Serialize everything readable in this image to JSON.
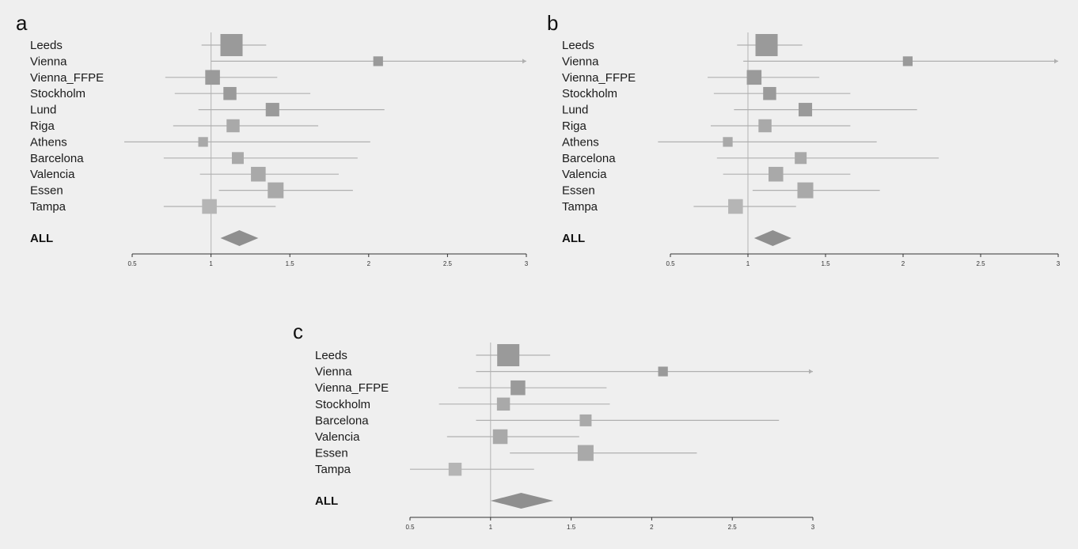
{
  "chart_data": [
    {
      "type": "forest",
      "panel": "a",
      "xlim": [
        0.5,
        3
      ],
      "xticks": [
        "0.5",
        "1",
        "1.5",
        "2",
        "2.5",
        "3"
      ],
      "reference_line": 1,
      "studies": [
        {
          "label": "Leeds",
          "estimate": 1.13,
          "ci": [
            0.94,
            1.35
          ],
          "weight": 1.0,
          "shade": "#9a9a9a"
        },
        {
          "label": "Vienna",
          "estimate": 2.06,
          "ci": [
            1.0,
            3.0
          ],
          "weight": 0.25,
          "shade": "#9a9a9a",
          "ci_truncated": true
        },
        {
          "label": "Vienna_FFPE",
          "estimate": 1.01,
          "ci": [
            0.71,
            1.42
          ],
          "weight": 0.55,
          "shade": "#9a9a9a"
        },
        {
          "label": "Stockholm",
          "estimate": 1.12,
          "ci": [
            0.77,
            1.63
          ],
          "weight": 0.45,
          "shade": "#9a9a9a"
        },
        {
          "label": "Lund",
          "estimate": 1.39,
          "ci": [
            0.92,
            2.1
          ],
          "weight": 0.48,
          "shade": "#9a9a9a"
        },
        {
          "label": "Riga",
          "estimate": 1.14,
          "ci": [
            0.76,
            1.68
          ],
          "weight": 0.45,
          "shade": "#a9a9a9"
        },
        {
          "label": "Athens",
          "estimate": 0.95,
          "ci": [
            0.45,
            2.01
          ],
          "weight": 0.25,
          "shade": "#a9a9a9"
        },
        {
          "label": "Barcelona",
          "estimate": 1.17,
          "ci": [
            0.7,
            1.93
          ],
          "weight": 0.38,
          "shade": "#a9a9a9"
        },
        {
          "label": "Valencia",
          "estimate": 1.3,
          "ci": [
            0.93,
            1.81
          ],
          "weight": 0.55,
          "shade": "#a9a9a9"
        },
        {
          "label": "Essen",
          "estimate": 1.41,
          "ci": [
            1.05,
            1.9
          ],
          "weight": 0.62,
          "shade": "#a9a9a9"
        },
        {
          "label": "Tampa",
          "estimate": 0.99,
          "ci": [
            0.7,
            1.41
          ],
          "weight": 0.55,
          "shade": "#b5b5b5"
        }
      ],
      "summary": {
        "label": "ALL",
        "estimate": 1.18,
        "ci": [
          1.06,
          1.3
        ]
      }
    },
    {
      "type": "forest",
      "panel": "b",
      "xlim": [
        0.5,
        3
      ],
      "xticks": [
        "0.5",
        "1",
        "1.5",
        "2",
        "2.5",
        "3"
      ],
      "reference_line": 1,
      "studies": [
        {
          "label": "Leeds",
          "estimate": 1.12,
          "ci": [
            0.93,
            1.35
          ],
          "weight": 1.0,
          "shade": "#9a9a9a"
        },
        {
          "label": "Vienna",
          "estimate": 2.03,
          "ci": [
            0.97,
            3.0
          ],
          "weight": 0.25,
          "shade": "#9a9a9a",
          "ci_truncated": true
        },
        {
          "label": "Vienna_FFPE",
          "estimate": 1.04,
          "ci": [
            0.74,
            1.46
          ],
          "weight": 0.55,
          "shade": "#9a9a9a"
        },
        {
          "label": "Stockholm",
          "estimate": 1.14,
          "ci": [
            0.78,
            1.66
          ],
          "weight": 0.45,
          "shade": "#9a9a9a"
        },
        {
          "label": "Lund",
          "estimate": 1.37,
          "ci": [
            0.91,
            2.09
          ],
          "weight": 0.48,
          "shade": "#9a9a9a"
        },
        {
          "label": "Riga",
          "estimate": 1.11,
          "ci": [
            0.76,
            1.66
          ],
          "weight": 0.45,
          "shade": "#a9a9a9"
        },
        {
          "label": "Athens",
          "estimate": 0.87,
          "ci": [
            0.42,
            1.83
          ],
          "weight": 0.25,
          "shade": "#a9a9a9"
        },
        {
          "label": "Barcelona",
          "estimate": 1.34,
          "ci": [
            0.8,
            2.23
          ],
          "weight": 0.38,
          "shade": "#a9a9a9"
        },
        {
          "label": "Valencia",
          "estimate": 1.18,
          "ci": [
            0.84,
            1.66
          ],
          "weight": 0.55,
          "shade": "#a9a9a9"
        },
        {
          "label": "Essen",
          "estimate": 1.37,
          "ci": [
            1.03,
            1.85
          ],
          "weight": 0.62,
          "shade": "#a9a9a9"
        },
        {
          "label": "Tampa",
          "estimate": 0.92,
          "ci": [
            0.65,
            1.31
          ],
          "weight": 0.55,
          "shade": "#b5b5b5"
        }
      ],
      "summary": {
        "label": "ALL",
        "estimate": 1.16,
        "ci": [
          1.04,
          1.28
        ]
      }
    },
    {
      "type": "forest",
      "panel": "c",
      "xlim": [
        0.5,
        3
      ],
      "xticks": [
        "0.5",
        "1",
        "1.5",
        "2",
        "2.5",
        "3"
      ],
      "reference_line": 1,
      "studies": [
        {
          "label": "Leeds",
          "estimate": 1.11,
          "ci": [
            0.91,
            1.37
          ],
          "weight": 1.0,
          "shade": "#9a9a9a"
        },
        {
          "label": "Vienna",
          "estimate": 2.07,
          "ci": [
            0.91,
            3.0
          ],
          "weight": 0.25,
          "shade": "#9a9a9a",
          "ci_truncated": true
        },
        {
          "label": "Vienna_FFPE",
          "estimate": 1.17,
          "ci": [
            0.8,
            1.72
          ],
          "weight": 0.55,
          "shade": "#9a9a9a"
        },
        {
          "label": "Stockholm",
          "estimate": 1.08,
          "ci": [
            0.68,
            1.74
          ],
          "weight": 0.45,
          "shade": "#a9a9a9"
        },
        {
          "label": "Barcelona",
          "estimate": 1.59,
          "ci": [
            0.91,
            2.79
          ],
          "weight": 0.38,
          "shade": "#a9a9a9"
        },
        {
          "label": "Valencia",
          "estimate": 1.06,
          "ci": [
            0.73,
            1.55
          ],
          "weight": 0.55,
          "shade": "#a9a9a9"
        },
        {
          "label": "Essen",
          "estimate": 1.59,
          "ci": [
            1.12,
            2.28
          ],
          "weight": 0.62,
          "shade": "#a9a9a9"
        },
        {
          "label": "Tampa",
          "estimate": 0.78,
          "ci": [
            0.5,
            1.27
          ],
          "weight": 0.45,
          "shade": "#b5b5b5"
        }
      ],
      "summary": {
        "label": "ALL",
        "estimate": 1.19,
        "ci": [
          1.0,
          1.39
        ]
      }
    }
  ],
  "colors": {
    "background": "#efefef",
    "ci_line": "#b0b0b0",
    "reference_line": "#bdbdbd",
    "summary_diamond": "#8f8f8f",
    "axis": "#333333"
  }
}
